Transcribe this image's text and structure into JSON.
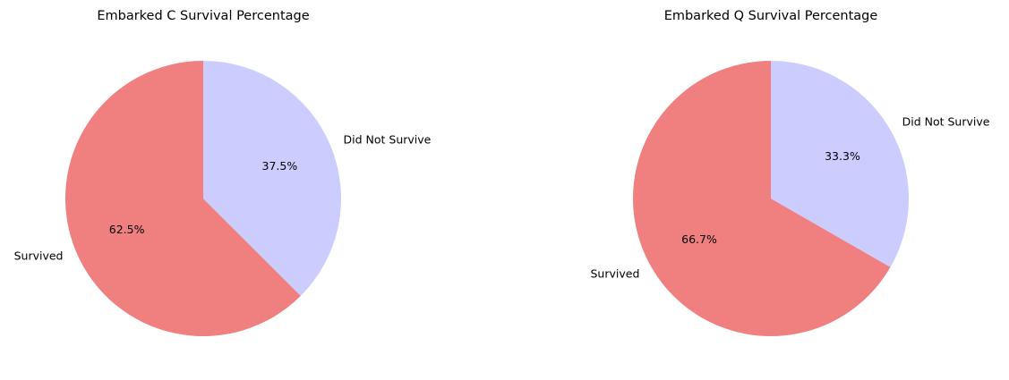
{
  "chart_data": [
    {
      "type": "pie",
      "title": "Embarked C Survival Percentage",
      "labels": [
        "Survived",
        "Did Not Survive"
      ],
      "values": [
        62.5,
        37.5
      ],
      "percent_labels": [
        "62.5%",
        "37.5%"
      ],
      "colors": [
        "#f08080",
        "#ccccff"
      ],
      "start_angle_deg": 90,
      "direction": "counterclockwise",
      "legend": "none"
    },
    {
      "type": "pie",
      "title": "Embarked Q Survival Percentage",
      "labels": [
        "Survived",
        "Did Not Survive"
      ],
      "values": [
        66.7,
        33.3
      ],
      "percent_labels": [
        "66.7%",
        "33.3%"
      ],
      "colors": [
        "#f08080",
        "#ccccff"
      ],
      "start_angle_deg": 90,
      "direction": "counterclockwise",
      "legend": "none"
    }
  ]
}
